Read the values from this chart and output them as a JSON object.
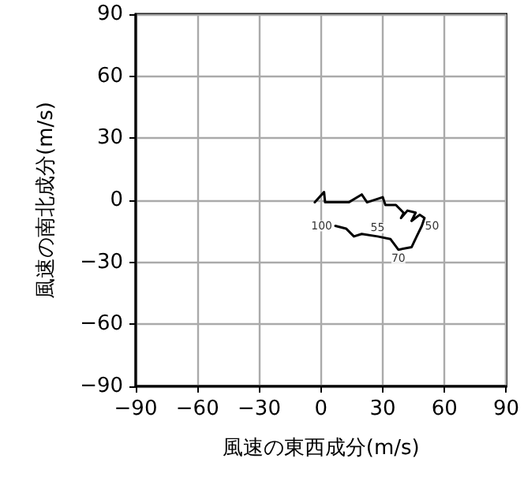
{
  "chart_data": {
    "type": "line",
    "xlabel": "風速の東西成分(m/s)",
    "ylabel": "風速の南北成分(m/s)",
    "x": [
      -3,
      1.5,
      2,
      13.5,
      19.8,
      22.4,
      30,
      31.3,
      36.4,
      40.2,
      38.9,
      42,
      46,
      44,
      48,
      50.3,
      49,
      46.5,
      44,
      37.6,
      33.8,
      27.5,
      19.8,
      16,
      12.2,
      7
    ],
    "series": [
      {
        "color": "#000000",
        "values": [
          -1,
          4,
          -1,
          -1,
          2.8,
          -1,
          1.5,
          -2.3,
          -2.3,
          -6.1,
          -8.6,
          -5,
          -6,
          -10,
          -7,
          -8.6,
          -12.4,
          -17.5,
          -22.7,
          -23.9,
          -18.8,
          -17.5,
          -16.3,
          -17.5,
          -13.7,
          -12.4
        ]
      }
    ],
    "xlim": [
      -90,
      90
    ],
    "xticks": [
      -90,
      -60,
      -30,
      0,
      30,
      60,
      90
    ],
    "ylim": [
      -90,
      90
    ],
    "yticks": [
      -90,
      -60,
      -30,
      0,
      30,
      60,
      90
    ],
    "grid": true,
    "marker": "none",
    "line_style": "solid",
    "annotations": [
      {
        "text": "100",
        "x": 7,
        "y": -12.4
      },
      {
        "text": "50",
        "x": 49,
        "y": -12.4
      },
      {
        "text": "70",
        "x": 37.6,
        "y": -23.9
      },
      {
        "text": "55",
        "x": 27.5,
        "y": -17.5
      }
    ]
  }
}
